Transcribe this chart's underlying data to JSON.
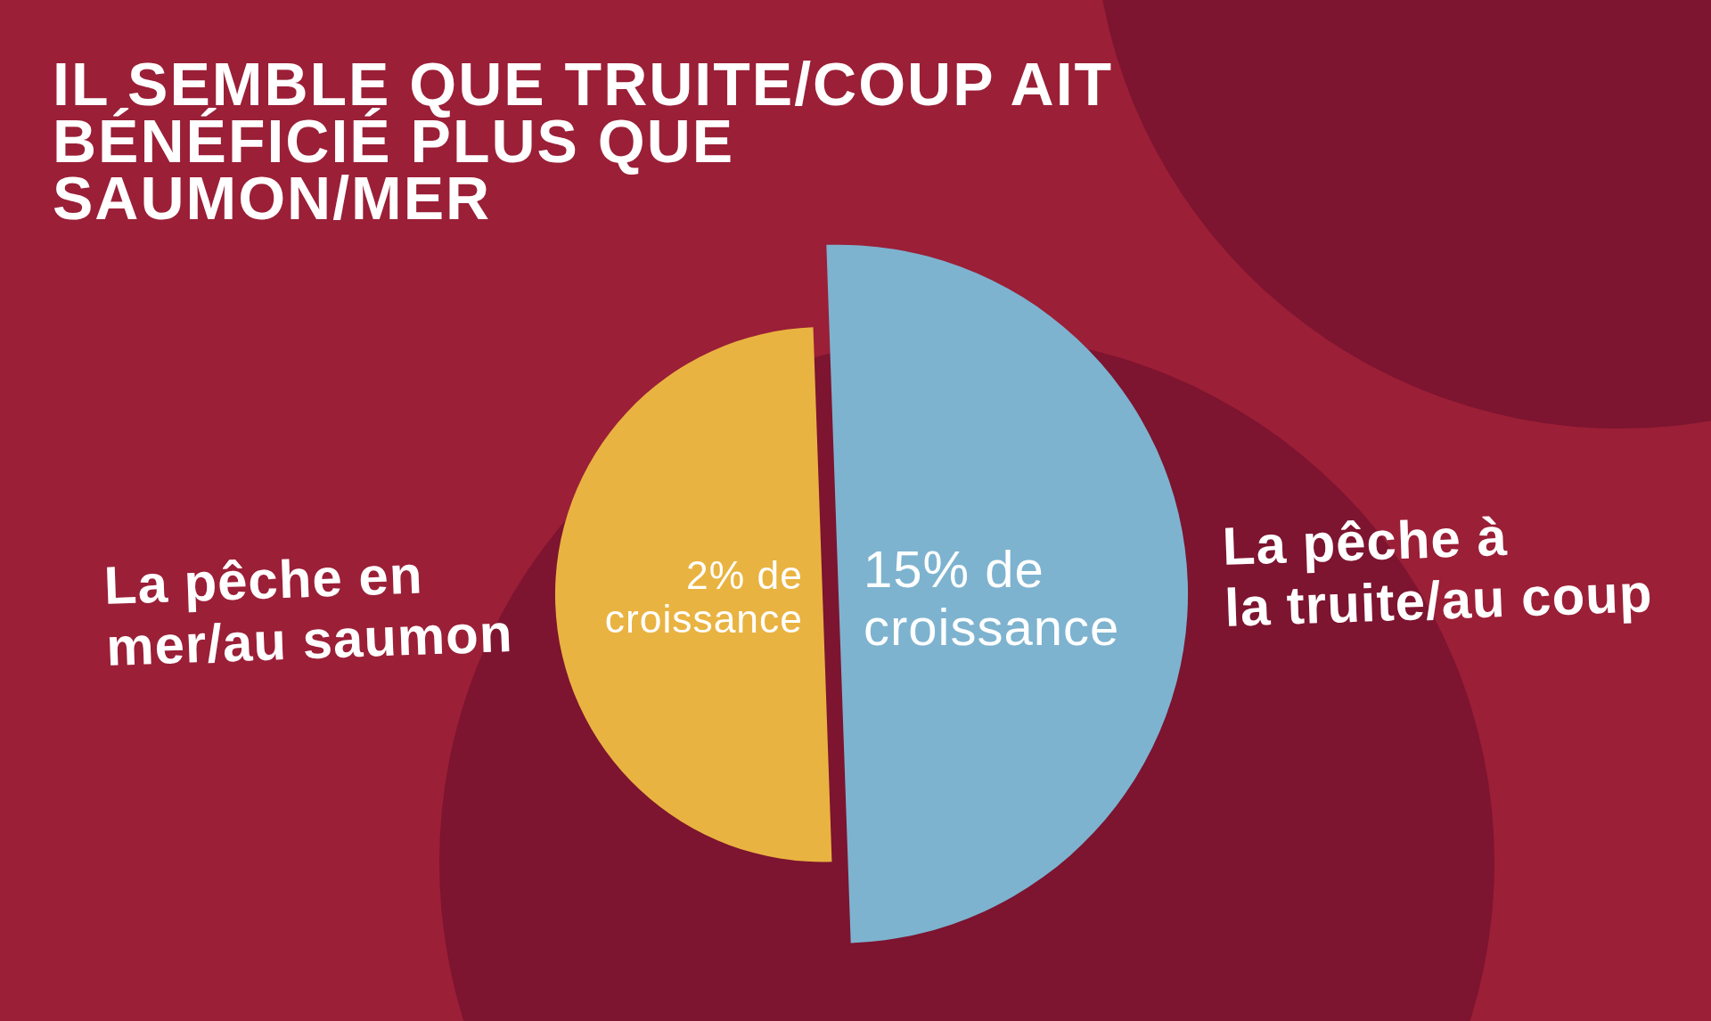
{
  "chart_data": {
    "type": "other",
    "title": "IL SEMBLE QUE TRUITE/COUP AIT BÉNÉFICIÉ PLUS QUE SAUMON/MER",
    "categories": [
      "La pêche en\nmer/au saumon",
      "La pêche à\nla truite/au coup"
    ],
    "values": [
      2,
      15
    ],
    "colors": [
      "#e9b341",
      "#7db3cf"
    ],
    "value_labels": [
      "2% de croissance",
      "15% de croissance"
    ]
  }
}
